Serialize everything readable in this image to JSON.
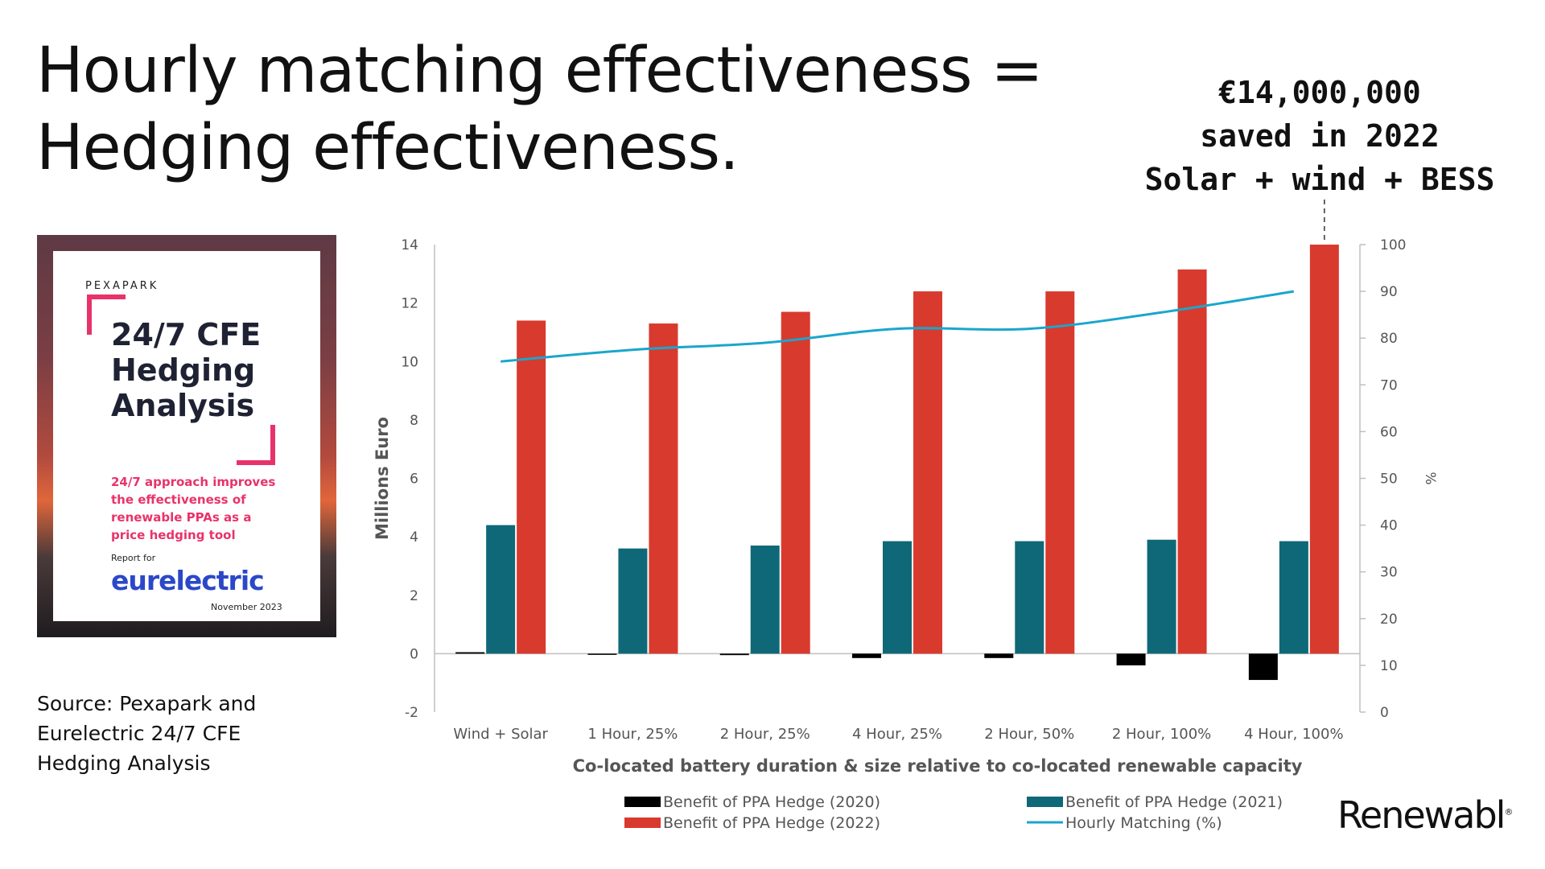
{
  "title_line1": "Hourly matching effectiveness =",
  "title_line2": "Hedging effectiveness.",
  "callout": {
    "line1": "€14,000,000",
    "line2": "saved in 2022",
    "line3": "Solar + wind + BESS"
  },
  "cover": {
    "brand": "PEXAPARK",
    "title_line1": "24/7 CFE",
    "title_line2": "Hedging",
    "title_line3": "Analysis",
    "subtitle": "24/7 approach improves the effectiveness of renewable PPAs as a price hedging tool",
    "report_for": "Report for",
    "logo": "eurelectric",
    "date": "November 2023"
  },
  "source": "Source: Pexapark and Eurelectric 24/7 CFE Hedging Analysis",
  "brand": "Renewabl",
  "brand_mark": "®",
  "chart_data": {
    "type": "bar",
    "categories": [
      "Wind + Solar",
      "1 Hour, 25%",
      "2 Hour, 25%",
      "4 Hour, 25%",
      "2 Hour, 50%",
      "2 Hour, 100%",
      "4 Hour, 100%"
    ],
    "series": [
      {
        "name": "Benefit of PPA Hedge (2020)",
        "type": "bar",
        "axis": "left",
        "color": "#000000",
        "values": [
          0.05,
          -0.02,
          -0.05,
          -0.15,
          -0.15,
          -0.4,
          -0.9
        ]
      },
      {
        "name": "Benefit of PPA Hedge (2021)",
        "type": "bar",
        "axis": "left",
        "color": "#0f6878",
        "values": [
          4.4,
          3.6,
          3.7,
          3.85,
          3.85,
          3.9,
          3.85
        ]
      },
      {
        "name": "Benefit of PPA Hedge (2022)",
        "type": "bar",
        "axis": "left",
        "color": "#d93a2e",
        "values": [
          11.4,
          11.3,
          11.7,
          12.4,
          12.4,
          13.15,
          14.0
        ]
      },
      {
        "name": "Hourly Matching (%)",
        "type": "line",
        "axis": "right",
        "color": "#1aa6cc",
        "values": [
          75,
          77.5,
          79,
          82,
          82,
          85.5,
          90
        ]
      }
    ],
    "xlabel": "Co-located battery duration & size relative to co-located renewable capacity",
    "ylabel": "Millions Euro",
    "y2label": "%",
    "ylim": [
      -2,
      14
    ],
    "yticks": [
      -2,
      0,
      2,
      4,
      6,
      8,
      10,
      12,
      14
    ],
    "y2lim": [
      0,
      100
    ],
    "y2ticks": [
      0,
      10,
      20,
      30,
      40,
      50,
      60,
      70,
      80,
      90,
      100
    ],
    "legend_position": "bottom",
    "grid": false
  }
}
